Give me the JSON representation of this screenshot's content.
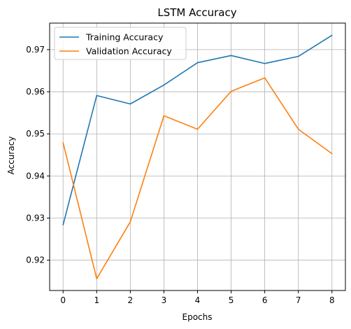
{
  "chart_data": {
    "type": "line",
    "title": "LSTM Accuracy",
    "xlabel": "Epochs",
    "ylabel": "Accuracy",
    "x": [
      0,
      1,
      2,
      3,
      4,
      5,
      6,
      7,
      8
    ],
    "x_ticks": [
      "0",
      "1",
      "2",
      "3",
      "4",
      "5",
      "6",
      "7",
      "8"
    ],
    "y_ticks": [
      "0.92",
      "0.93",
      "0.94",
      "0.95",
      "0.96",
      "0.97"
    ],
    "y_tick_values": [
      0.92,
      0.93,
      0.94,
      0.95,
      0.96,
      0.97
    ],
    "xlim": [
      -0.4,
      8.4
    ],
    "ylim": [
      0.9128,
      0.9763
    ],
    "grid": true,
    "legend_position": "top-left",
    "series": [
      {
        "name": "Training Accuracy",
        "color": "#1f77b4",
        "values": [
          0.9284,
          0.9591,
          0.9571,
          0.9616,
          0.9669,
          0.9686,
          0.9667,
          0.9684,
          0.9734
        ]
      },
      {
        "name": "Validation Accuracy",
        "color": "#ff7f0e",
        "values": [
          0.9479,
          0.9156,
          0.9291,
          0.9543,
          0.9511,
          0.9601,
          0.9633,
          0.9511,
          0.9453
        ]
      }
    ]
  }
}
